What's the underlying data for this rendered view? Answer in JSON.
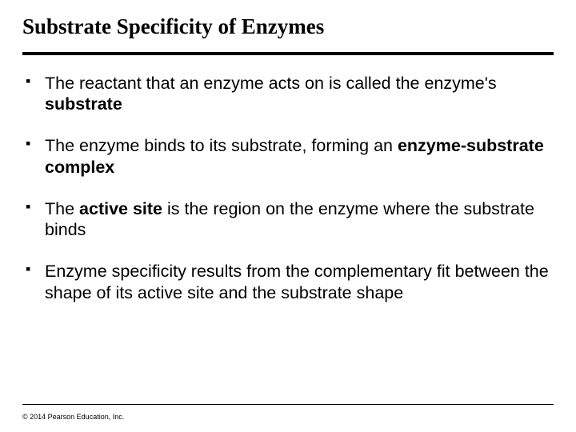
{
  "title": "Substrate Specificity of Enzymes",
  "title_fontsize": 27,
  "title_font": "Times New Roman",
  "bullet_fontsize": 21.5,
  "bullet_marker": "▪",
  "bullets": [
    {
      "segments": [
        {
          "text": "The reactant that an enzyme acts on is called the enzyme's ",
          "bold": false
        },
        {
          "text": "substrate",
          "bold": true
        }
      ]
    },
    {
      "segments": [
        {
          "text": "The enzyme binds to its substrate, forming an ",
          "bold": false
        },
        {
          "text": "enzyme-substrate complex",
          "bold": true
        }
      ]
    },
    {
      "segments": [
        {
          "text": "The ",
          "bold": false
        },
        {
          "text": "active site",
          "bold": true
        },
        {
          "text": " is the region on the enzyme where the substrate binds",
          "bold": false
        }
      ]
    },
    {
      "segments": [
        {
          "text": "Enzyme specificity results from the complementary fit between the shape of its active site and the substrate shape",
          "bold": false
        }
      ]
    }
  ],
  "copyright": "© 2014 Pearson Education, Inc.",
  "colors": {
    "background": "#ffffff",
    "text": "#000000",
    "rule": "#000000"
  }
}
